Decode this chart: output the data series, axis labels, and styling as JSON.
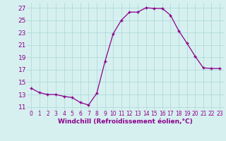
{
  "x": [
    0,
    1,
    2,
    3,
    4,
    5,
    6,
    7,
    8,
    9,
    10,
    11,
    12,
    13,
    14,
    15,
    16,
    17,
    18,
    19,
    20,
    21,
    22,
    23
  ],
  "y": [
    14.0,
    13.3,
    13.0,
    13.0,
    12.7,
    12.5,
    11.7,
    11.3,
    13.2,
    18.3,
    22.8,
    25.0,
    26.3,
    26.3,
    27.0,
    26.9,
    26.9,
    25.8,
    23.3,
    21.3,
    19.2,
    17.3,
    17.2,
    17.2
  ],
  "line_color": "#8B008B",
  "marker": "+",
  "bg_color": "#d6f0f0",
  "grid_color": "#b0dada",
  "xlabel": "Windchill (Refroidissement éolien,°C)",
  "ylabel_ticks": [
    11,
    13,
    15,
    17,
    19,
    21,
    23,
    25,
    27
  ],
  "ylim": [
    10.5,
    27.8
  ],
  "xlim": [
    -0.5,
    23.5
  ],
  "xlabel_color": "#8B008B",
  "tick_color": "#8B008B",
  "xlabel_fontsize": 6.5,
  "ytick_fontsize": 6.5,
  "xtick_fontsize": 5.5,
  "linewidth": 0.9,
  "markersize": 3.5,
  "markeredgewidth": 1.0
}
